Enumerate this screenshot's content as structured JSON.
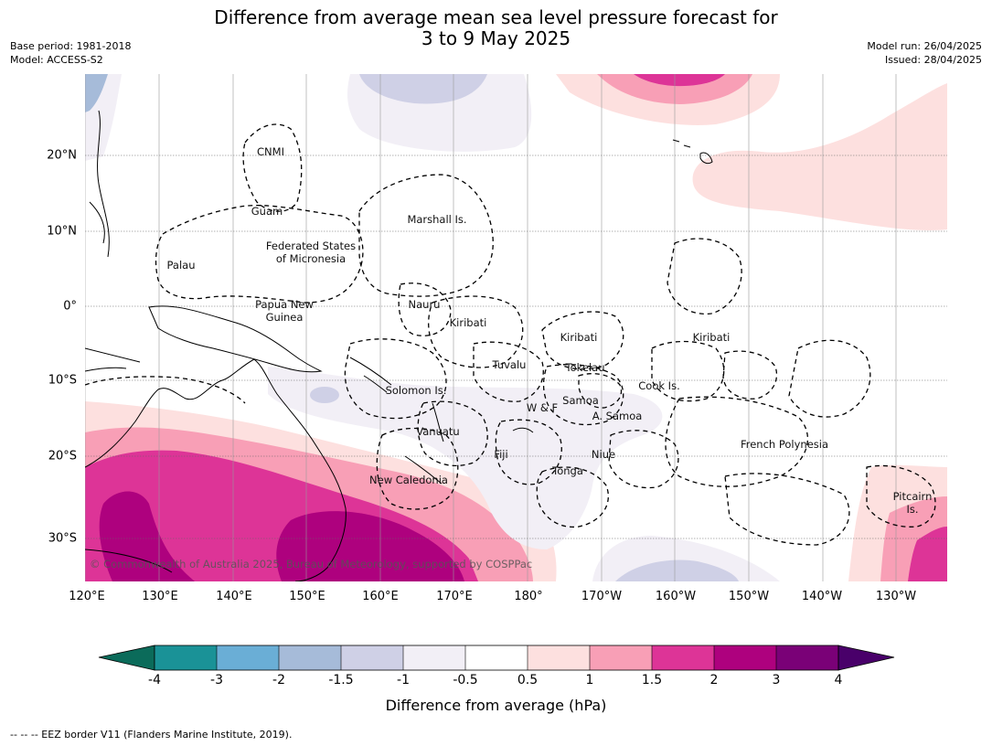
{
  "title": {
    "line1": "Difference from average mean sea level pressure forecast for",
    "line2": "3 to 9 May 2025"
  },
  "meta_left": {
    "base_period": "Base period: 1981-2018",
    "model": "Model: ACCESS-S2"
  },
  "meta_right": {
    "model_run": "Model run: 26/04/2025",
    "issued": "Issued: 28/04/2025"
  },
  "map": {
    "lon_labels": [
      "120°E",
      "130°E",
      "140°E",
      "150°E",
      "160°E",
      "170°E",
      "180°",
      "170°W",
      "160°W",
      "150°W",
      "140°W",
      "130°W"
    ],
    "lat_labels": [
      "20°N",
      "10°N",
      "0°",
      "10°S",
      "20°S",
      "30°S"
    ],
    "places": {
      "cnmi": "CNMI",
      "guam": "Guam",
      "marshall": "Marshall Is.",
      "palau": "Palau",
      "fsm_line1": "Federated States",
      "fsm_line2": "of Micronesia",
      "png_line1": "Papua New",
      "png_line2": "Guinea",
      "nauru": "Nauru",
      "kiribati_w": "Kiribati",
      "kiribati_c": "Kiribati",
      "kiribati_e": "Kiribati",
      "tuvalu": "Tuvalu",
      "tokelau": "Tokelau",
      "solomon": "Solomon Is.",
      "wf": "W & F",
      "samoa": "Samoa",
      "asamoa": "A. Samoa",
      "cook": "Cook Is.",
      "vanuatu": "Vanuatu",
      "fiji": "Fiji",
      "niue": "Niue",
      "tonga": "Tonga",
      "frenchpoly": "French Polynesia",
      "newcal": "New Caledonia",
      "pitcairn_line1": "Pitcairn",
      "pitcairn_line2": "Is."
    },
    "copyright": "© Commonwealth of Australia 2025, Bureau of Meteorology, supported by COSPPac"
  },
  "colorbar": {
    "ticks": [
      "-4",
      "-3",
      "-2",
      "-1.5",
      "-1",
      "-0.5",
      "0.5",
      "1",
      "1.5",
      "2",
      "3",
      "4"
    ],
    "colors": {
      "lt_m4": "#0b6b5a",
      "m4_m3": "#1a9297",
      "m3_m2": "#6aaed6",
      "m2_m15": "#a6bbd9",
      "m15_m1": "#cfd0e6",
      "m1_m05": "#f2eff6",
      "m05_05": "#ffffff",
      "p05_1": "#fde0df",
      "p1_15": "#f89fb6",
      "p15_2": "#dd3497",
      "p2_3": "#ae017e",
      "p3_4": "#7a0177",
      "gt_4": "#49006a"
    },
    "label": "Difference from average (hPa)"
  },
  "footnote": "--  --  -- EEZ border V11 (Flanders Marine Institute, 2019)."
}
